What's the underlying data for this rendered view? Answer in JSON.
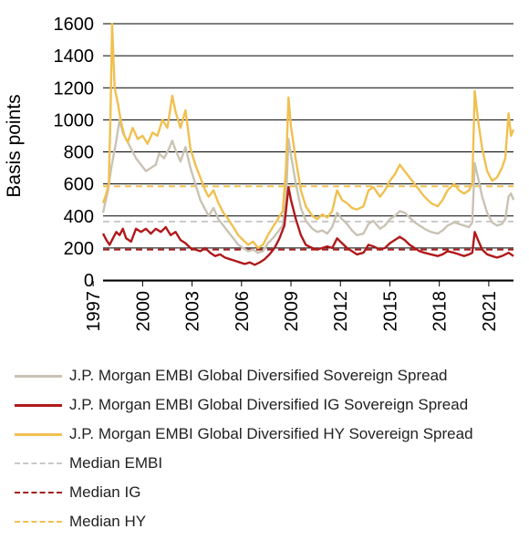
{
  "chart_data": {
    "type": "line",
    "title": "",
    "xlabel": "",
    "ylabel": "Basis points",
    "xlim": [
      1997.6,
      2022.5
    ],
    "ylim": [
      0,
      1600
    ],
    "yticks": [
      0,
      200,
      400,
      600,
      800,
      1000,
      1200,
      1400,
      1600
    ],
    "xticks": [
      1997,
      2000,
      2003,
      2006,
      2009,
      2012,
      2015,
      2018,
      2021
    ],
    "xtick_labels": [
      "1997",
      "2000",
      "2003",
      "2006",
      "2009",
      "2012",
      "2015",
      "2018",
      "2021"
    ],
    "grid": "horizontal",
    "legend_position": "bottom",
    "series": [
      {
        "name": "J.P. Morgan EMBI Global Diversified Sovereign Spread",
        "color": "#c9c3b4",
        "style": "solid",
        "points": [
          [
            1997.6,
            420
          ],
          [
            1997.9,
            560
          ],
          [
            1998.1,
            700
          ],
          [
            1998.4,
            870
          ],
          [
            1998.6,
            1000
          ],
          [
            1998.8,
            920
          ],
          [
            1999.0,
            880
          ],
          [
            1999.3,
            820
          ],
          [
            1999.6,
            760
          ],
          [
            1999.9,
            720
          ],
          [
            2000.2,
            680
          ],
          [
            2000.5,
            700
          ],
          [
            2000.8,
            720
          ],
          [
            2001.0,
            790
          ],
          [
            2001.3,
            760
          ],
          [
            2001.6,
            820
          ],
          [
            2001.8,
            870
          ],
          [
            2002.0,
            810
          ],
          [
            2002.3,
            740
          ],
          [
            2002.6,
            830
          ],
          [
            2002.9,
            700
          ],
          [
            2003.2,
            600
          ],
          [
            2003.5,
            500
          ],
          [
            2003.8,
            440
          ],
          [
            2004.0,
            400
          ],
          [
            2004.3,
            450
          ],
          [
            2004.6,
            380
          ],
          [
            2004.9,
            340
          ],
          [
            2005.2,
            300
          ],
          [
            2005.5,
            260
          ],
          [
            2005.8,
            220
          ],
          [
            2006.1,
            200
          ],
          [
            2006.4,
            180
          ],
          [
            2006.7,
            190
          ],
          [
            2007.0,
            170
          ],
          [
            2007.3,
            180
          ],
          [
            2007.6,
            230
          ],
          [
            2007.9,
            260
          ],
          [
            2008.2,
            300
          ],
          [
            2008.5,
            340
          ],
          [
            2008.7,
            500
          ],
          [
            2008.85,
            880
          ],
          [
            2009.0,
            780
          ],
          [
            2009.3,
            600
          ],
          [
            2009.6,
            450
          ],
          [
            2009.9,
            370
          ],
          [
            2010.3,
            320
          ],
          [
            2010.6,
            300
          ],
          [
            2010.9,
            310
          ],
          [
            2011.2,
            290
          ],
          [
            2011.5,
            330
          ],
          [
            2011.8,
            420
          ],
          [
            2012.1,
            380
          ],
          [
            2012.4,
            350
          ],
          [
            2012.7,
            310
          ],
          [
            2013.0,
            280
          ],
          [
            2013.4,
            290
          ],
          [
            2013.7,
            350
          ],
          [
            2014.0,
            370
          ],
          [
            2014.4,
            320
          ],
          [
            2014.7,
            340
          ],
          [
            2015.0,
            380
          ],
          [
            2015.3,
            400
          ],
          [
            2015.6,
            430
          ],
          [
            2015.9,
            420
          ],
          [
            2016.2,
            390
          ],
          [
            2016.5,
            360
          ],
          [
            2016.8,
            340
          ],
          [
            2017.1,
            320
          ],
          [
            2017.5,
            300
          ],
          [
            2017.9,
            290
          ],
          [
            2018.2,
            310
          ],
          [
            2018.5,
            340
          ],
          [
            2018.9,
            360
          ],
          [
            2019.2,
            350
          ],
          [
            2019.5,
            340
          ],
          [
            2019.8,
            330
          ],
          [
            2020.0,
            360
          ],
          [
            2020.15,
            730
          ],
          [
            2020.35,
            640
          ],
          [
            2020.6,
            520
          ],
          [
            2020.9,
            420
          ],
          [
            2021.2,
            360
          ],
          [
            2021.5,
            340
          ],
          [
            2021.8,
            350
          ],
          [
            2022.0,
            380
          ],
          [
            2022.2,
            520
          ],
          [
            2022.35,
            540
          ],
          [
            2022.5,
            500
          ]
        ]
      },
      {
        "name": "J.P. Morgan EMBI Global Diversified IG Sovereign Spread",
        "color": "#b0191b",
        "style": "solid",
        "points": [
          [
            1997.6,
            290
          ],
          [
            1997.8,
            250
          ],
          [
            1998.0,
            220
          ],
          [
            1998.2,
            260
          ],
          [
            1998.4,
            300
          ],
          [
            1998.6,
            280
          ],
          [
            1998.8,
            320
          ],
          [
            1999.0,
            260
          ],
          [
            1999.3,
            240
          ],
          [
            1999.6,
            320
          ],
          [
            1999.9,
            300
          ],
          [
            2000.2,
            320
          ],
          [
            2000.5,
            290
          ],
          [
            2000.8,
            320
          ],
          [
            2001.1,
            300
          ],
          [
            2001.4,
            330
          ],
          [
            2001.7,
            280
          ],
          [
            2002.0,
            300
          ],
          [
            2002.3,
            250
          ],
          [
            2002.6,
            230
          ],
          [
            2002.9,
            200
          ],
          [
            2003.2,
            190
          ],
          [
            2003.5,
            180
          ],
          [
            2003.8,
            200
          ],
          [
            2004.1,
            170
          ],
          [
            2004.4,
            150
          ],
          [
            2004.7,
            160
          ],
          [
            2005.0,
            140
          ],
          [
            2005.3,
            130
          ],
          [
            2005.6,
            120
          ],
          [
            2005.9,
            110
          ],
          [
            2006.2,
            100
          ],
          [
            2006.5,
            110
          ],
          [
            2006.8,
            95
          ],
          [
            2007.1,
            110
          ],
          [
            2007.4,
            130
          ],
          [
            2007.7,
            160
          ],
          [
            2008.0,
            200
          ],
          [
            2008.3,
            260
          ],
          [
            2008.6,
            340
          ],
          [
            2008.85,
            580
          ],
          [
            2009.0,
            500
          ],
          [
            2009.3,
            380
          ],
          [
            2009.6,
            280
          ],
          [
            2009.9,
            220
          ],
          [
            2010.3,
            200
          ],
          [
            2010.6,
            190
          ],
          [
            2010.9,
            200
          ],
          [
            2011.2,
            210
          ],
          [
            2011.5,
            200
          ],
          [
            2011.8,
            260
          ],
          [
            2012.1,
            230
          ],
          [
            2012.4,
            200
          ],
          [
            2012.7,
            180
          ],
          [
            2013.0,
            160
          ],
          [
            2013.4,
            170
          ],
          [
            2013.7,
            220
          ],
          [
            2014.0,
            210
          ],
          [
            2014.4,
            190
          ],
          [
            2014.7,
            200
          ],
          [
            2015.0,
            230
          ],
          [
            2015.3,
            250
          ],
          [
            2015.6,
            270
          ],
          [
            2015.9,
            250
          ],
          [
            2016.2,
            220
          ],
          [
            2016.5,
            200
          ],
          [
            2016.8,
            180
          ],
          [
            2017.1,
            170
          ],
          [
            2017.5,
            160
          ],
          [
            2017.9,
            150
          ],
          [
            2018.2,
            160
          ],
          [
            2018.5,
            180
          ],
          [
            2018.9,
            170
          ],
          [
            2019.2,
            160
          ],
          [
            2019.5,
            150
          ],
          [
            2019.8,
            160
          ],
          [
            2020.0,
            170
          ],
          [
            2020.15,
            300
          ],
          [
            2020.35,
            250
          ],
          [
            2020.6,
            190
          ],
          [
            2020.9,
            160
          ],
          [
            2021.2,
            150
          ],
          [
            2021.5,
            140
          ],
          [
            2021.8,
            150
          ],
          [
            2022.0,
            160
          ],
          [
            2022.2,
            170
          ],
          [
            2022.35,
            160
          ],
          [
            2022.5,
            150
          ]
        ]
      },
      {
        "name": "J.P. Morgan EMBI Global Diversified HY Sovereign Spread",
        "color": "#f0c050",
        "style": "solid",
        "points": [
          [
            1997.6,
            480
          ],
          [
            1997.8,
            540
          ],
          [
            1997.95,
            600
          ],
          [
            1998.05,
            1020
          ],
          [
            1998.15,
            1600
          ],
          [
            1998.3,
            1200
          ],
          [
            1998.5,
            1100
          ],
          [
            1998.7,
            980
          ],
          [
            1998.9,
            900
          ],
          [
            1999.1,
            860
          ],
          [
            1999.4,
            950
          ],
          [
            1999.7,
            880
          ],
          [
            2000.0,
            900
          ],
          [
            2000.3,
            850
          ],
          [
            2000.6,
            920
          ],
          [
            2000.9,
            900
          ],
          [
            2001.2,
            1000
          ],
          [
            2001.5,
            950
          ],
          [
            2001.8,
            1150
          ],
          [
            2002.0,
            1050
          ],
          [
            2002.3,
            950
          ],
          [
            2002.6,
            1060
          ],
          [
            2002.9,
            820
          ],
          [
            2003.2,
            720
          ],
          [
            2003.5,
            640
          ],
          [
            2003.8,
            560
          ],
          [
            2004.0,
            520
          ],
          [
            2004.3,
            560
          ],
          [
            2004.6,
            480
          ],
          [
            2004.9,
            420
          ],
          [
            2005.2,
            380
          ],
          [
            2005.5,
            330
          ],
          [
            2005.8,
            280
          ],
          [
            2006.1,
            250
          ],
          [
            2006.4,
            220
          ],
          [
            2006.7,
            240
          ],
          [
            2007.0,
            200
          ],
          [
            2007.3,
            220
          ],
          [
            2007.6,
            280
          ],
          [
            2007.9,
            330
          ],
          [
            2008.2,
            380
          ],
          [
            2008.5,
            430
          ],
          [
            2008.7,
            700
          ],
          [
            2008.85,
            1140
          ],
          [
            2009.0,
            960
          ],
          [
            2009.3,
            750
          ],
          [
            2009.6,
            560
          ],
          [
            2009.9,
            460
          ],
          [
            2010.3,
            400
          ],
          [
            2010.6,
            380
          ],
          [
            2010.9,
            410
          ],
          [
            2011.2,
            390
          ],
          [
            2011.5,
            430
          ],
          [
            2011.8,
            560
          ],
          [
            2012.1,
            500
          ],
          [
            2012.4,
            480
          ],
          [
            2012.7,
            450
          ],
          [
            2013.0,
            440
          ],
          [
            2013.4,
            460
          ],
          [
            2013.7,
            560
          ],
          [
            2014.0,
            580
          ],
          [
            2014.4,
            520
          ],
          [
            2014.7,
            560
          ],
          [
            2015.0,
            620
          ],
          [
            2015.3,
            660
          ],
          [
            2015.6,
            720
          ],
          [
            2015.9,
            680
          ],
          [
            2016.2,
            640
          ],
          [
            2016.5,
            600
          ],
          [
            2016.8,
            560
          ],
          [
            2017.1,
            520
          ],
          [
            2017.5,
            480
          ],
          [
            2017.9,
            460
          ],
          [
            2018.2,
            500
          ],
          [
            2018.5,
            560
          ],
          [
            2018.9,
            600
          ],
          [
            2019.2,
            560
          ],
          [
            2019.5,
            540
          ],
          [
            2019.8,
            560
          ],
          [
            2020.0,
            600
          ],
          [
            2020.15,
            1180
          ],
          [
            2020.35,
            1000
          ],
          [
            2020.6,
            820
          ],
          [
            2020.9,
            680
          ],
          [
            2021.2,
            620
          ],
          [
            2021.5,
            640
          ],
          [
            2021.8,
            700
          ],
          [
            2022.0,
            760
          ],
          [
            2022.2,
            1040
          ],
          [
            2022.35,
            900
          ],
          [
            2022.5,
            940
          ]
        ]
      },
      {
        "name": "Median EMBI",
        "color": "#c9c9c9",
        "style": "dashed",
        "points": [
          [
            1997.6,
            365
          ],
          [
            2022.5,
            365
          ]
        ]
      },
      {
        "name": "Median IG",
        "color": "#a51c1c",
        "style": "dashed",
        "points": [
          [
            1997.6,
            190
          ],
          [
            2022.5,
            190
          ]
        ]
      },
      {
        "name": "Median HY",
        "color": "#f0c050",
        "style": "dashed",
        "points": [
          [
            1997.6,
            585
          ],
          [
            2022.5,
            585
          ]
        ]
      }
    ]
  }
}
